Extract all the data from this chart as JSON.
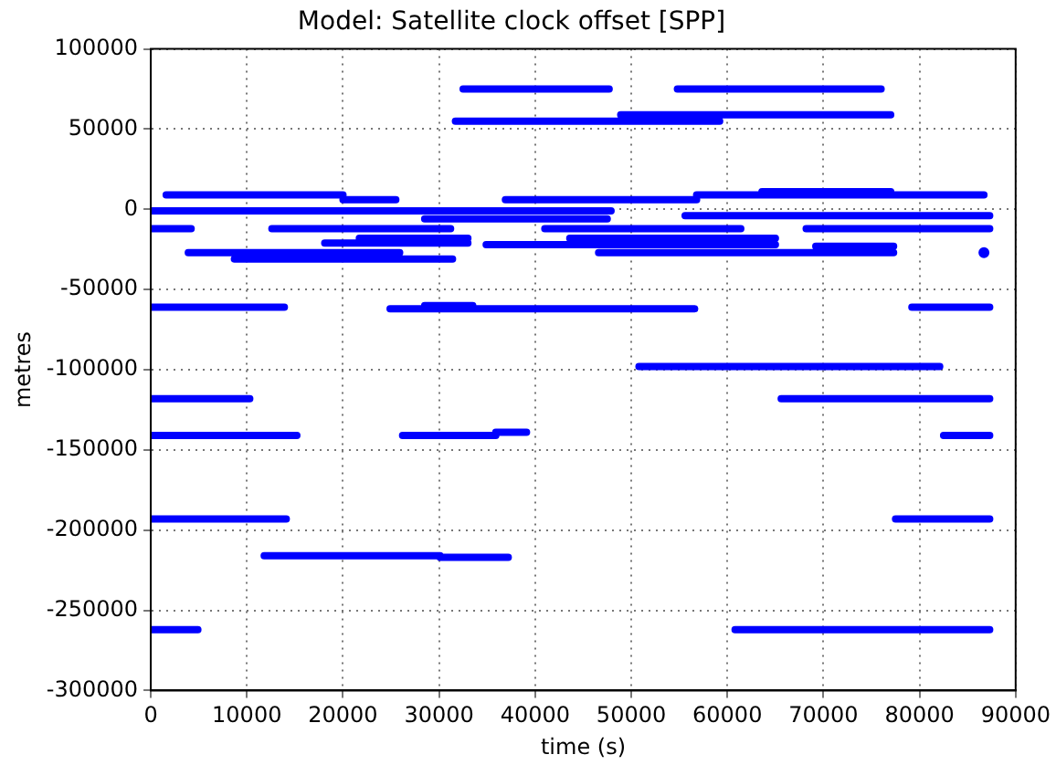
{
  "chart_data": {
    "type": "line",
    "title": "Model: Satellite clock offset [SPP]",
    "xlabel": "time (s)",
    "ylabel": "metres",
    "xlim": [
      0,
      90000
    ],
    "xticks": [
      0,
      10000,
      20000,
      30000,
      40000,
      50000,
      60000,
      70000,
      80000,
      90000
    ],
    "ylim": [
      -300000,
      100000
    ],
    "yticks": [
      -300000,
      -250000,
      -200000,
      -150000,
      -100000,
      -50000,
      0,
      50000,
      100000
    ],
    "grid": true,
    "legend": false,
    "line_style": "solid",
    "series": [
      {
        "color": "#0000ff",
        "marker": "none",
        "x": [
          32500,
          47700,
          null,
          54800,
          76000,
          null,
          31700,
          59200,
          null,
          48900,
          77000,
          null,
          1600,
          20000,
          null,
          20000,
          25500,
          null,
          36900,
          56800,
          null,
          56800,
          86700,
          null,
          63600,
          77000,
          null,
          0,
          47900,
          null,
          28500,
          47500,
          null,
          55600,
          87300,
          null,
          0,
          4200,
          null,
          12600,
          31200,
          null,
          41000,
          61400,
          null,
          68200,
          87300,
          null,
          18100,
          33000,
          null,
          21700,
          33000,
          null,
          34900,
          65000,
          null,
          43600,
          65000,
          null,
          3900,
          25900,
          null,
          46600,
          77300,
          null,
          69200,
          77300,
          null,
          8700,
          31400,
          null,
          0,
          13900,
          null,
          24900,
          56600,
          null,
          28500,
          33500,
          null,
          79200,
          87300,
          null,
          50800,
          82100,
          null,
          0,
          10300,
          null,
          65600,
          87300,
          null,
          0,
          15200,
          null,
          26200,
          35900,
          null,
          35900,
          39100,
          null,
          82500,
          87300,
          null,
          0,
          14100,
          null,
          77500,
          87300,
          null,
          11800,
          30100,
          null,
          30100,
          37200,
          null,
          0,
          4900,
          null,
          60800,
          87300
        ],
        "values": [
          75000,
          75000,
          null,
          75000,
          75000,
          null,
          55000,
          55000,
          null,
          59000,
          59000,
          null,
          9000,
          9000,
          null,
          6000,
          6000,
          null,
          6000,
          6000,
          null,
          9000,
          9000,
          null,
          11000,
          11000,
          null,
          -1000,
          -1000,
          null,
          -6000,
          -6000,
          null,
          -4000,
          -4000,
          null,
          -12000,
          -12000,
          null,
          -12000,
          -12000,
          null,
          -12000,
          -12000,
          null,
          -12000,
          -12000,
          null,
          -21000,
          -21000,
          null,
          -18000,
          -18000,
          null,
          -22000,
          -22000,
          null,
          -18000,
          -18000,
          null,
          -27000,
          -27000,
          null,
          -27000,
          -27000,
          null,
          -23000,
          -23000,
          null,
          -31000,
          -31000,
          null,
          -61000,
          -61000,
          null,
          -62000,
          -62000,
          null,
          -60000,
          -60000,
          null,
          -61000,
          -61000,
          null,
          -98000,
          -98000,
          null,
          -118000,
          -118000,
          null,
          -118000,
          -118000,
          null,
          -141000,
          -141000,
          null,
          -141000,
          -141000,
          null,
          -139000,
          -139000,
          null,
          -141000,
          -141000,
          null,
          -193000,
          -193000,
          null,
          -193000,
          -193000,
          null,
          -216000,
          -216000,
          null,
          -217000,
          -217000,
          null,
          -262000,
          -262000,
          null,
          -262000,
          -262000
        ]
      },
      {
        "type": "scatter",
        "color": "#0000ff",
        "marker": "circle",
        "x": [
          86700
        ],
        "values": [
          -27000
        ]
      }
    ]
  }
}
